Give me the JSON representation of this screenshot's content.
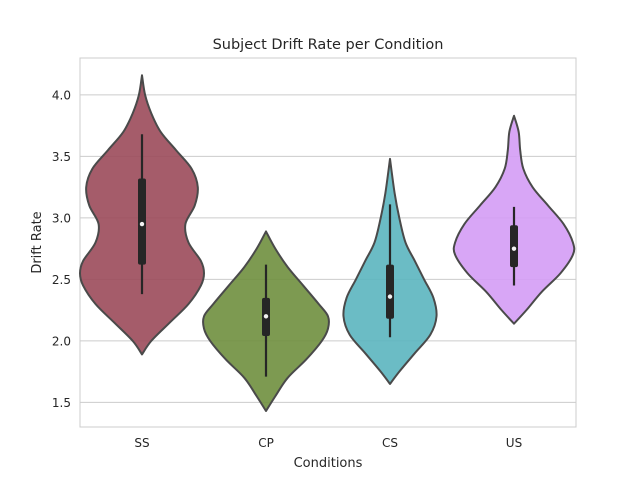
{
  "chart_data": {
    "type": "violin",
    "title": "Subject Drift Rate per Condition",
    "xlabel": "Conditions",
    "ylabel": "Drift Rate",
    "ylim": [
      1.3,
      4.3
    ],
    "yticks": [
      1.5,
      2.0,
      2.5,
      3.0,
      3.5,
      4.0
    ],
    "ytick_labels": [
      "1.5",
      "2.0",
      "2.5",
      "3.0",
      "3.5",
      "4.0"
    ],
    "grid": "horizontal",
    "categories": [
      "SS",
      "CP",
      "CS",
      "US"
    ],
    "colors": {
      "SS": "#9b4a5a",
      "CP": "#6f8f3e",
      "CS": "#5bb5bf",
      "US": "#d49cf5"
    },
    "violins": [
      {
        "category": "SS",
        "min": 1.89,
        "max": 4.16,
        "median": 2.95,
        "q1": 2.62,
        "q3": 3.32,
        "whisker_low": 2.38,
        "whisker_high": 3.68,
        "profile": [
          [
            1.89,
            0.0
          ],
          [
            2.0,
            0.03
          ],
          [
            2.15,
            0.09
          ],
          [
            2.3,
            0.15
          ],
          [
            2.45,
            0.19
          ],
          [
            2.55,
            0.2
          ],
          [
            2.65,
            0.19
          ],
          [
            2.8,
            0.15
          ],
          [
            2.95,
            0.14
          ],
          [
            3.1,
            0.17
          ],
          [
            3.25,
            0.18
          ],
          [
            3.4,
            0.16
          ],
          [
            3.55,
            0.11
          ],
          [
            3.7,
            0.06
          ],
          [
            3.85,
            0.03
          ],
          [
            4.0,
            0.01
          ],
          [
            4.16,
            0.0
          ]
        ]
      },
      {
        "category": "CP",
        "min": 1.43,
        "max": 2.89,
        "median": 2.2,
        "q1": 2.04,
        "q3": 2.35,
        "whisker_low": 1.71,
        "whisker_high": 2.62,
        "profile": [
          [
            1.43,
            0.0
          ],
          [
            1.55,
            0.03
          ],
          [
            1.7,
            0.07
          ],
          [
            1.85,
            0.13
          ],
          [
            2.0,
            0.18
          ],
          [
            2.1,
            0.2
          ],
          [
            2.2,
            0.2
          ],
          [
            2.3,
            0.17
          ],
          [
            2.45,
            0.12
          ],
          [
            2.6,
            0.07
          ],
          [
            2.75,
            0.03
          ],
          [
            2.89,
            0.0
          ]
        ]
      },
      {
        "category": "CS",
        "min": 1.65,
        "max": 3.48,
        "median": 2.36,
        "q1": 2.18,
        "q3": 2.62,
        "whisker_low": 2.03,
        "whisker_high": 3.11,
        "profile": [
          [
            1.65,
            0.0
          ],
          [
            1.75,
            0.03
          ],
          [
            1.9,
            0.08
          ],
          [
            2.05,
            0.13
          ],
          [
            2.2,
            0.15
          ],
          [
            2.35,
            0.14
          ],
          [
            2.5,
            0.11
          ],
          [
            2.65,
            0.08
          ],
          [
            2.8,
            0.05
          ],
          [
            3.0,
            0.03
          ],
          [
            3.2,
            0.015
          ],
          [
            3.48,
            0.0
          ]
        ]
      },
      {
        "category": "US",
        "min": 2.14,
        "max": 3.83,
        "median": 2.75,
        "q1": 2.6,
        "q3": 2.94,
        "whisker_low": 2.45,
        "whisker_high": 3.09,
        "profile": [
          [
            2.14,
            0.0
          ],
          [
            2.25,
            0.04
          ],
          [
            2.4,
            0.09
          ],
          [
            2.55,
            0.15
          ],
          [
            2.7,
            0.19
          ],
          [
            2.8,
            0.19
          ],
          [
            2.95,
            0.16
          ],
          [
            3.1,
            0.11
          ],
          [
            3.25,
            0.06
          ],
          [
            3.4,
            0.03
          ],
          [
            3.55,
            0.02
          ],
          [
            3.7,
            0.015
          ],
          [
            3.83,
            0.0
          ]
        ]
      }
    ]
  }
}
